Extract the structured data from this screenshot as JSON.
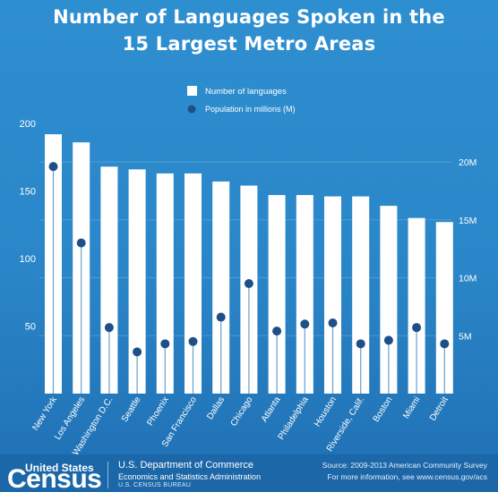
{
  "title_line1": "Number of Languages Spoken in the",
  "title_line2": "15 Largest Metro Areas",
  "colors": {
    "background": "#2a86c8",
    "bar": "#ffffff",
    "dot": "#1e4f86",
    "stem": "#ffffff",
    "axis_text": "#ffffff"
  },
  "chart_data": {
    "type": "bar",
    "categories": [
      "New York",
      "Los Angeles",
      "Washington D.C.",
      "Seattle",
      "Phoenix",
      "San Francisco",
      "Dallas",
      "Chicago",
      "Atlanta",
      "Philadelphia",
      "Houston",
      "Riverside, Calif.",
      "Boston",
      "Miami",
      "Detroit"
    ],
    "series": [
      {
        "name": "Number of languages",
        "axis": "left",
        "values": [
          192,
          186,
          168,
          166,
          163,
          163,
          157,
          154,
          147,
          147,
          146,
          146,
          139,
          130,
          127
        ]
      },
      {
        "name": "Population in millions (M)",
        "axis": "right",
        "values": [
          19.6,
          13.0,
          5.7,
          3.6,
          4.3,
          4.5,
          6.6,
          9.5,
          5.4,
          6.0,
          6.1,
          4.3,
          4.6,
          5.7,
          4.3
        ]
      }
    ],
    "left_axis": {
      "ticks": [
        "200",
        "150",
        "100",
        "50"
      ],
      "tick_values": [
        200,
        150,
        100,
        50
      ],
      "range": [
        0,
        200
      ]
    },
    "right_axis": {
      "ticks": [
        "20M",
        "15M",
        "10M",
        "5M"
      ],
      "tick_values": [
        20,
        15,
        10,
        5
      ],
      "range": [
        0,
        25
      ]
    },
    "legend": [
      "Number of languages",
      "Population in millions (M)"
    ],
    "legend_placement": "top-center",
    "grid": false
  },
  "footer": {
    "census_top": "United States",
    "census_word": "Census",
    "dept": "U.S. Department of Commerce",
    "esa": "Economics and Statistics Administration",
    "bureau": "U.S. CENSUS BUREAU",
    "source": "Source: 2009-2013 American Community Survey",
    "more_info": "For more information, see www.census.gov/acs"
  }
}
